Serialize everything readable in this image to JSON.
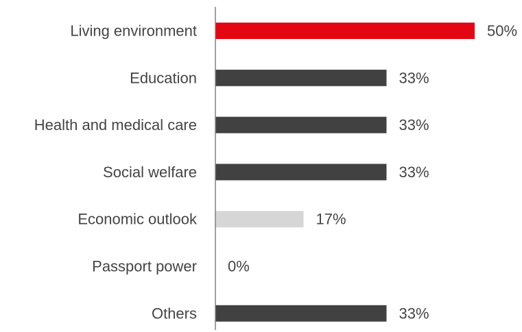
{
  "chart_data": {
    "type": "bar",
    "orientation": "horizontal",
    "categories": [
      "Living environment",
      "Education",
      "Health and medical care",
      "Social welfare",
      "Economic outlook",
      "Passport power",
      "Others"
    ],
    "values": [
      50,
      33,
      33,
      33,
      17,
      0,
      33
    ],
    "value_labels": [
      "50%",
      "33%",
      "33%",
      "33%",
      "17%",
      "0%",
      "33%"
    ],
    "colors": [
      "#e30613",
      "#414141",
      "#414141",
      "#414141",
      "#d6d6d6",
      "#414141",
      "#414141"
    ],
    "axis_color": "#808080",
    "label_color": "#444444",
    "title": "",
    "xlabel": "",
    "ylabel": "",
    "xlim": [
      0,
      50
    ],
    "grid": false,
    "legend": "none"
  }
}
